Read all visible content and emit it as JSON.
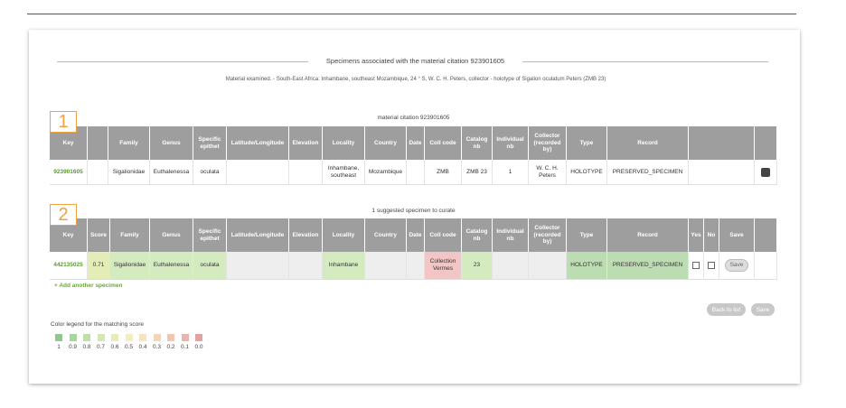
{
  "header": {
    "title": "Specimens associated with the material citation 923901605",
    "subtitle": "Material examined. - South-East Africa: Inhambane, southeast Mozambique, 24 ° S, W. C. H. Peters, collector - holotype of Sigalion oculatum Peters (ZMB 23)"
  },
  "table1": {
    "badge": "1",
    "caption": "material citation 923901605",
    "columns": [
      "Key",
      "Family",
      "Genus",
      "Specific epithet",
      "Latitude/Longitude",
      "Elevation",
      "Locality",
      "Country",
      "Date",
      "Coll code",
      "Catalog nb",
      "Individual nb",
      "Collector (recorded by)",
      "Type",
      "Record"
    ],
    "row": [
      "923901605",
      "Sigalionidae",
      "Euthalenessa",
      "oculata",
      "Inhambane, southeast",
      "Mozambique",
      "ZMB",
      "ZMB 23",
      "1",
      "W. C. H. Peters",
      "HOLOTYPE",
      "PRESERVED_SPECIMEN"
    ]
  },
  "table2": {
    "badge": "2",
    "caption": "1 suggested specimen to curate",
    "columns": [
      "Key",
      "Score",
      "Family",
      "Genus",
      "Specific epithet",
      "Latitude/Longitude",
      "Elevation",
      "Locality",
      "Country",
      "Date",
      "Coll code",
      "Catalog nb",
      "Individual nb",
      "Collector (recorded by)",
      "Type",
      "Record",
      "Yes",
      "No",
      "Save"
    ],
    "row": [
      "442135025",
      "0.71",
      "Sigalionidae",
      "Euthalenessa",
      "oculata",
      "Inhambane",
      "Collection Vermes",
      "23",
      "HOLOTYPE",
      "PRESERVED_SPECIMEN",
      "Save"
    ]
  },
  "add_link": "+ Add another specimen",
  "buttons": [
    "Back to list",
    "Save"
  ],
  "legend": {
    "title": "Color legend for the matching score",
    "items": [
      {
        "label": "1",
        "color": "#8fc98f"
      },
      {
        "label": "0.9",
        "color": "#a6d59e"
      },
      {
        "label": "0.8",
        "color": "#bfdfa8"
      },
      {
        "label": "0.7",
        "color": "#d2e8b2"
      },
      {
        "label": "0.6",
        "color": "#e5ecba"
      },
      {
        "label": "0.5",
        "color": "#f3eec2"
      },
      {
        "label": "0.4",
        "color": "#f5e4bd"
      },
      {
        "label": "0.3",
        "color": "#f3d6b8"
      },
      {
        "label": "0.2",
        "color": "#efc6b2"
      },
      {
        "label": "0.1",
        "color": "#e9b4ae"
      },
      {
        "label": "0.0",
        "color": "#e2a2a2"
      }
    ]
  }
}
